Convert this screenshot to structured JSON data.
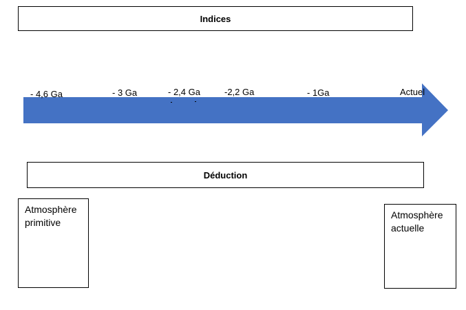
{
  "header": {
    "indices_label": "Indices",
    "deduction_label": "Déduction"
  },
  "timeline": {
    "arrow_color": "#4472C4",
    "ticks": [
      "- 4,6 Ga",
      "- 3 Ga",
      "- 2,4 Ga",
      "-2,2 Ga",
      "- 1Ga",
      "Actuel"
    ]
  },
  "atmospheres": {
    "primitive": "Atmosphère\nprimitive",
    "current": "Atmosphère\nactuelle"
  }
}
